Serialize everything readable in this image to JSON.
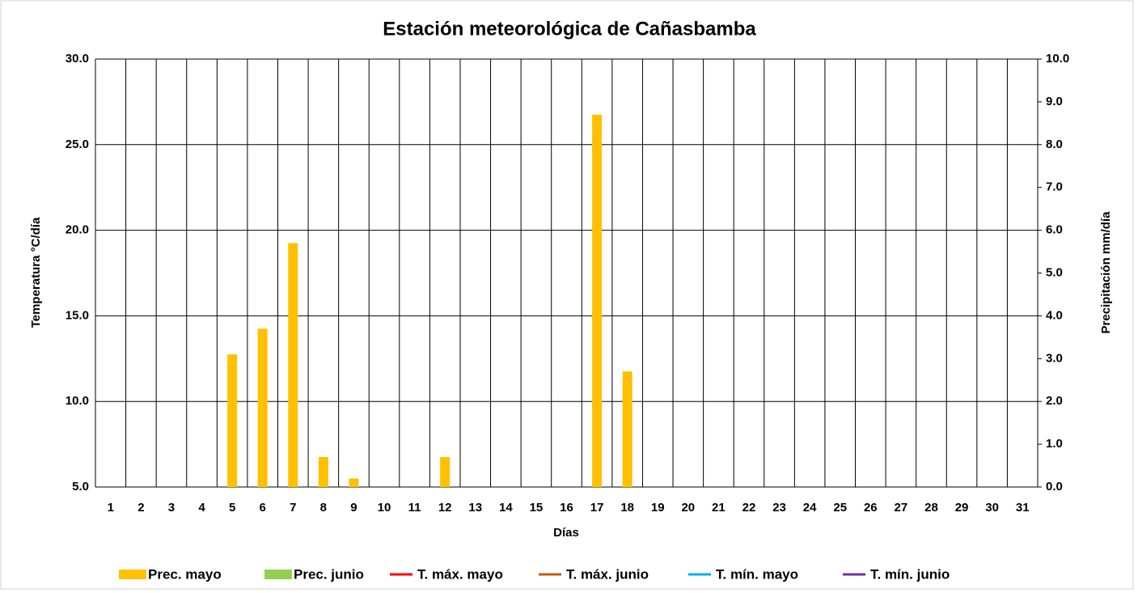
{
  "chart_data": {
    "type": "bar",
    "title": "Estación meteorológica de Cañasbamba",
    "xlabel": "Días",
    "ylabel": "Temperatura °C/día",
    "y2label": "Precipitación mm/día",
    "categories": [
      "1",
      "2",
      "3",
      "4",
      "5",
      "6",
      "7",
      "8",
      "9",
      "10",
      "11",
      "12",
      "13",
      "14",
      "15",
      "16",
      "17",
      "18",
      "19",
      "20",
      "21",
      "22",
      "23",
      "24",
      "25",
      "26",
      "27",
      "28",
      "29",
      "30",
      "31"
    ],
    "ylim": [
      5,
      30
    ],
    "yticks": [
      {
        "value": 5,
        "label": "5.0"
      },
      {
        "value": 10,
        "label": "10.0"
      },
      {
        "value": 15,
        "label": "15.0"
      },
      {
        "value": 20,
        "label": "20.0"
      },
      {
        "value": 25,
        "label": "25.0"
      },
      {
        "value": 30,
        "label": "30.0"
      }
    ],
    "y2lim": [
      0,
      10
    ],
    "y2ticks": [
      {
        "value": 0,
        "label": "0.0"
      },
      {
        "value": 1,
        "label": "1.0"
      },
      {
        "value": 2,
        "label": "2.0"
      },
      {
        "value": 3,
        "label": "3.0"
      },
      {
        "value": 4,
        "label": "4.0"
      },
      {
        "value": 5,
        "label": "5.0"
      },
      {
        "value": 6,
        "label": "6.0"
      },
      {
        "value": 7,
        "label": "7.0"
      },
      {
        "value": 8,
        "label": "8.0"
      },
      {
        "value": 9,
        "label": "9.0"
      },
      {
        "value": 10,
        "label": "10.0"
      }
    ],
    "grid": true,
    "legend": "bottom",
    "series": [
      {
        "name": "Prec. mayo",
        "kind": "bar",
        "axis": "y2",
        "color": "#ffc000",
        "values": [
          null,
          null,
          null,
          null,
          3.1,
          3.7,
          5.7,
          0.7,
          0.2,
          null,
          null,
          0.7,
          null,
          null,
          null,
          null,
          8.7,
          2.7,
          null,
          null,
          null,
          null,
          null,
          null,
          null,
          null,
          null,
          null,
          null,
          null,
          null
        ]
      },
      {
        "name": "Prec. junio",
        "kind": "bar",
        "axis": "y2",
        "color": "#92d050",
        "values": [
          null,
          null,
          null,
          null,
          null,
          null,
          null,
          null,
          null,
          null,
          null,
          null,
          null,
          null,
          null,
          null,
          null,
          null,
          null,
          null,
          null,
          null,
          null,
          null,
          null,
          null,
          null,
          null,
          null,
          null,
          null
        ]
      },
      {
        "name": "T. máx. mayo",
        "kind": "line",
        "color": "#ff0000",
        "values": [
          null,
          null,
          null,
          null,
          null,
          null,
          null,
          null,
          null,
          null,
          null,
          null,
          null,
          null,
          null,
          null,
          null,
          null,
          null,
          null,
          null,
          null,
          null,
          null,
          null,
          null,
          null,
          null,
          null,
          null,
          null
        ]
      },
      {
        "name": "T. máx. junio",
        "kind": "line",
        "color": "#c55a11",
        "values": [
          null,
          null,
          null,
          null,
          null,
          null,
          null,
          null,
          null,
          null,
          null,
          null,
          null,
          null,
          null,
          null,
          null,
          null,
          null,
          null,
          null,
          null,
          null,
          null,
          null,
          null,
          null,
          null,
          null,
          null,
          null
        ]
      },
      {
        "name": "T. mín. mayo",
        "kind": "line",
        "color": "#00b0f0",
        "values": [
          null,
          null,
          null,
          null,
          null,
          null,
          null,
          null,
          null,
          null,
          null,
          null,
          null,
          null,
          null,
          null,
          null,
          null,
          null,
          null,
          null,
          null,
          null,
          null,
          null,
          null,
          null,
          null,
          null,
          null,
          null
        ]
      },
      {
        "name": "T. mín. junio",
        "kind": "line",
        "color": "#7030a0",
        "values": [
          null,
          null,
          null,
          null,
          null,
          null,
          null,
          null,
          null,
          null,
          null,
          null,
          null,
          null,
          null,
          null,
          null,
          null,
          null,
          null,
          null,
          null,
          null,
          null,
          null,
          null,
          null,
          null,
          null,
          null,
          null
        ]
      }
    ]
  }
}
